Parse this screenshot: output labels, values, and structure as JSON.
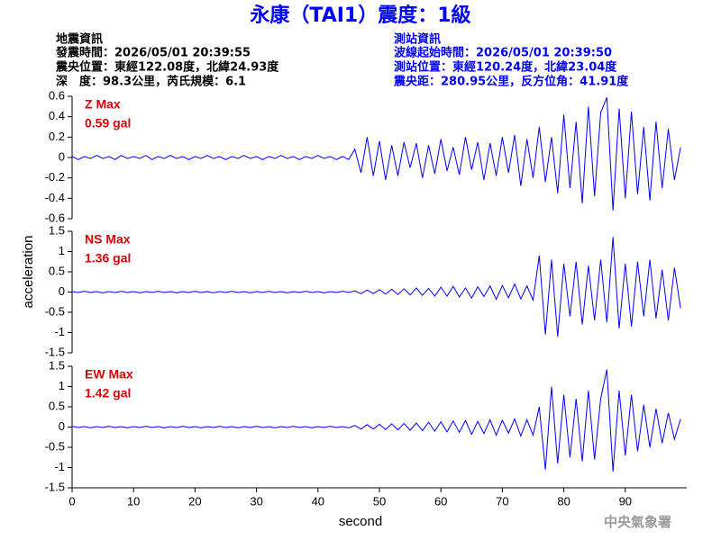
{
  "header": {
    "title": "永康（TAI1）震度：1級",
    "left_info": [
      "地震資訊",
      "發震時間：2026/05/01 20:39:55",
      "震央位置：東經122.08度，北緯24.93度",
      "深　度：98.3公里，芮氏規模：6.1"
    ],
    "right_info": [
      "測站資訊",
      "波線起始時間：2026/05/01 20:39:50",
      "測站位置：東經120.24度，北緯23.04度",
      "震央距：280.95公里，反方位角：41.91度"
    ]
  },
  "chart_data": {
    "type": "line",
    "xlabel": "second",
    "ylabel": "acceleration",
    "xlim": [
      0,
      100
    ],
    "xticks": [
      0,
      10,
      20,
      30,
      40,
      50,
      60,
      70,
      80,
      90
    ],
    "x": [
      0,
      1,
      2,
      3,
      4,
      5,
      6,
      7,
      8,
      9,
      10,
      11,
      12,
      13,
      14,
      15,
      16,
      17,
      18,
      19,
      20,
      21,
      22,
      23,
      24,
      25,
      26,
      27,
      28,
      29,
      30,
      31,
      32,
      33,
      34,
      35,
      36,
      37,
      38,
      39,
      40,
      41,
      42,
      43,
      44,
      45,
      46,
      47,
      48,
      49,
      50,
      51,
      52,
      53,
      54,
      55,
      56,
      57,
      58,
      59,
      60,
      61,
      62,
      63,
      64,
      65,
      66,
      67,
      68,
      69,
      70,
      71,
      72,
      73,
      74,
      75,
      76,
      77,
      78,
      79,
      80,
      81,
      82,
      83,
      84,
      85,
      86,
      87,
      88,
      89,
      90,
      91,
      92,
      93,
      94,
      95,
      96,
      97,
      98,
      99
    ],
    "panels": [
      {
        "name": "Z Max",
        "peak": "0.59 gal",
        "color": "#0000ff",
        "ylim": [
          -0.6,
          0.6
        ],
        "yticks": [
          -0.6,
          -0.4,
          -0.2,
          0,
          0.2,
          0.4,
          0.6
        ],
        "values": [
          0.01,
          -0.02,
          0.01,
          -0.01,
          0.02,
          -0.01,
          0.01,
          -0.02,
          0.02,
          -0.01,
          0.01,
          -0.01,
          0.02,
          -0.02,
          0.01,
          -0.01,
          0.02,
          -0.01,
          0.01,
          -0.02,
          0.01,
          -0.01,
          0.02,
          -0.01,
          0.01,
          -0.02,
          0.01,
          -0.01,
          0.02,
          -0.01,
          0.01,
          -0.02,
          0.01,
          -0.01,
          0.02,
          -0.01,
          0.01,
          -0.02,
          0.01,
          -0.01,
          0.02,
          -0.01,
          0.01,
          -0.02,
          0.01,
          -0.02,
          0.08,
          -0.15,
          0.2,
          -0.18,
          0.16,
          -0.22,
          0.12,
          -0.18,
          0.15,
          -0.1,
          0.14,
          -0.2,
          0.12,
          -0.16,
          0.18,
          -0.13,
          0.1,
          -0.17,
          0.2,
          -0.12,
          0.15,
          -0.22,
          0.14,
          -0.18,
          0.2,
          -0.15,
          0.22,
          -0.28,
          0.18,
          -0.2,
          0.3,
          -0.24,
          0.2,
          -0.35,
          0.42,
          -0.3,
          0.35,
          -0.45,
          0.5,
          -0.38,
          0.44,
          0.59,
          -0.52,
          0.48,
          -0.4,
          0.45,
          -0.36,
          0.3,
          -0.42,
          0.35,
          -0.3,
          0.28,
          -0.22,
          0.1
        ]
      },
      {
        "name": "NS Max",
        "peak": "1.36 gal",
        "color": "#0000ff",
        "ylim": [
          -1.5,
          1.5
        ],
        "yticks": [
          -1.5,
          -1,
          -0.5,
          0,
          0.5,
          1,
          1.5
        ],
        "values": [
          0.01,
          -0.01,
          0.02,
          -0.01,
          0.01,
          -0.02,
          0.01,
          -0.01,
          0.02,
          -0.01,
          0.01,
          -0.02,
          0.01,
          -0.01,
          0.02,
          -0.01,
          0.01,
          -0.02,
          0.01,
          -0.01,
          0.02,
          -0.01,
          0.01,
          -0.02,
          0.01,
          -0.01,
          0.02,
          -0.01,
          0.01,
          -0.02,
          0.01,
          -0.01,
          0.02,
          -0.01,
          0.01,
          -0.02,
          0.01,
          -0.01,
          0.02,
          -0.01,
          0.01,
          -0.02,
          0.01,
          -0.01,
          0.02,
          -0.01,
          0.03,
          -0.04,
          0.05,
          -0.04,
          0.06,
          -0.05,
          0.07,
          -0.06,
          0.08,
          -0.07,
          0.1,
          -0.08,
          0.09,
          -0.1,
          0.12,
          -0.1,
          0.14,
          -0.12,
          0.1,
          -0.15,
          0.13,
          -0.11,
          0.15,
          -0.18,
          0.16,
          -0.14,
          0.2,
          -0.17,
          0.15,
          -0.2,
          0.9,
          -1.05,
          0.8,
          -1.1,
          0.7,
          -0.6,
          0.75,
          -0.8,
          0.65,
          -0.7,
          0.8,
          -0.75,
          1.36,
          -0.9,
          0.7,
          -0.85,
          0.75,
          -0.6,
          0.8,
          -0.65,
          0.55,
          -0.7,
          0.6,
          -0.4
        ]
      },
      {
        "name": "EW Max",
        "peak": "1.42 gal",
        "color": "#0000ff",
        "ylim": [
          -1.5,
          1.5
        ],
        "yticks": [
          -1.5,
          -1,
          -0.5,
          0,
          0.5,
          1,
          1.5
        ],
        "values": [
          0.02,
          -0.01,
          0.01,
          -0.02,
          0.01,
          -0.01,
          0.02,
          -0.01,
          0.01,
          -0.02,
          0.01,
          -0.01,
          0.02,
          -0.01,
          0.01,
          -0.02,
          0.01,
          -0.01,
          0.02,
          -0.01,
          0.01,
          -0.02,
          0.01,
          -0.01,
          0.02,
          -0.01,
          0.01,
          -0.02,
          0.01,
          -0.01,
          0.02,
          -0.01,
          0.01,
          -0.02,
          0.01,
          -0.01,
          0.02,
          -0.01,
          0.01,
          -0.02,
          0.01,
          -0.01,
          0.02,
          -0.01,
          0.01,
          -0.02,
          0.04,
          -0.05,
          0.06,
          -0.05,
          0.07,
          -0.06,
          0.08,
          -0.07,
          0.09,
          -0.08,
          0.1,
          -0.09,
          0.12,
          -0.1,
          0.13,
          -0.12,
          0.15,
          -0.13,
          0.16,
          -0.18,
          0.14,
          -0.16,
          0.18,
          -0.2,
          0.17,
          -0.15,
          0.2,
          -0.22,
          0.18,
          -0.2,
          0.5,
          -1.05,
          1.0,
          -0.9,
          0.8,
          -0.75,
          0.7,
          -0.85,
          0.9,
          -0.8,
          0.7,
          1.42,
          -1.1,
          0.9,
          -0.7,
          0.8,
          -0.6,
          0.55,
          -0.5,
          0.45,
          -0.4,
          0.35,
          -0.3,
          0.2
        ]
      }
    ]
  },
  "footer": "中央氣象署"
}
